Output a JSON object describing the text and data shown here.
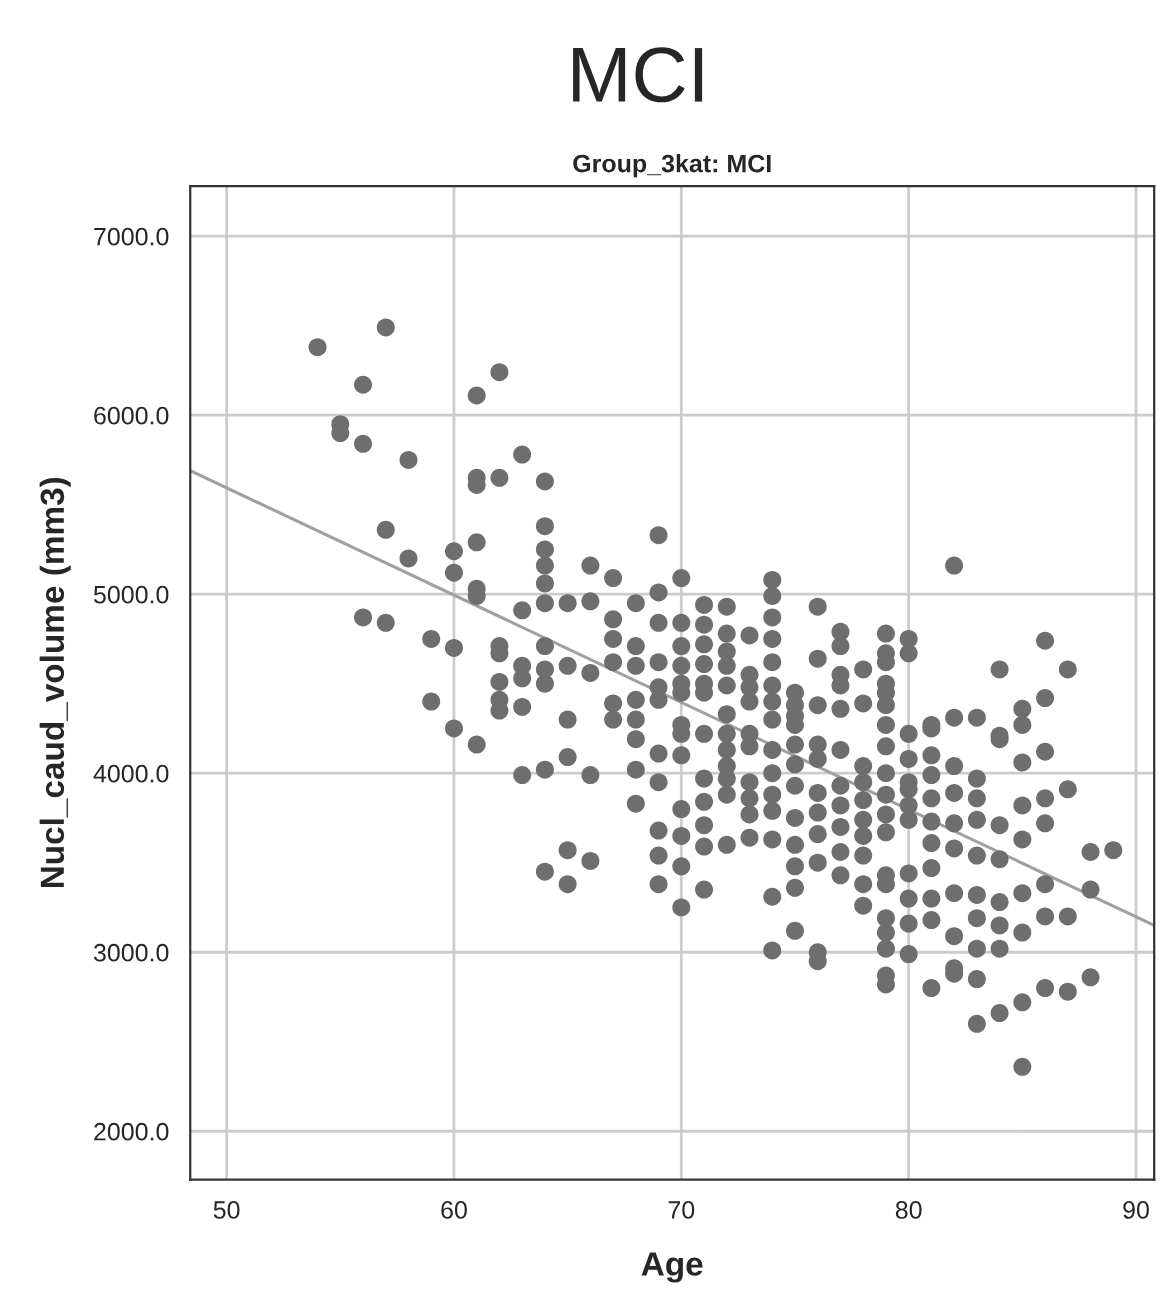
{
  "chart_data": {
    "type": "scatter",
    "title": "MCI",
    "subtitle": "Group_3kat: MCI",
    "xlabel": "Age",
    "ylabel": "Nucl_caud_volume (mm3)",
    "xlim": [
      48.4,
      90.8
    ],
    "ylim": [
      1730,
      7280
    ],
    "xticks": [
      50,
      60,
      70,
      80,
      90
    ],
    "yticks": [
      {
        "value": 2000,
        "label": "2000.0"
      },
      {
        "value": 3000,
        "label": "3000.0"
      },
      {
        "value": 4000,
        "label": "4000.0"
      },
      {
        "value": 5000,
        "label": "5000.0"
      },
      {
        "value": 6000,
        "label": "6000.0"
      },
      {
        "value": 7000,
        "label": "7000.0"
      }
    ],
    "grid": true,
    "series": [
      {
        "marker": "circle",
        "color": "#6e6e6e",
        "x": [
          54,
          55,
          55,
          56,
          56,
          56,
          57,
          57,
          57,
          58,
          58,
          59,
          59,
          60,
          60,
          60,
          60,
          61,
          61,
          61,
          61,
          61,
          61,
          61,
          62,
          62,
          62,
          62,
          62,
          62,
          62,
          63,
          63,
          63,
          63,
          63,
          63,
          64,
          64,
          64,
          64,
          64,
          64,
          64,
          64,
          64,
          64,
          64,
          65,
          65,
          65,
          65,
          65,
          65,
          66,
          66,
          66,
          66,
          66,
          67,
          67,
          67,
          67,
          67,
          67,
          68,
          68,
          68,
          68,
          68,
          68,
          68,
          68,
          69,
          69,
          69,
          69,
          69,
          69,
          69,
          69,
          69,
          69,
          69,
          70,
          70,
          70,
          70,
          70,
          70,
          70,
          70,
          70,
          70,
          70,
          70,
          70,
          71,
          71,
          71,
          71,
          71,
          71,
          71,
          71,
          71,
          71,
          71,
          71,
          72,
          72,
          72,
          72,
          72,
          72,
          72,
          72,
          72,
          72,
          72,
          72,
          73,
          73,
          73,
          73,
          73,
          73,
          73,
          73,
          73,
          73,
          74,
          74,
          74,
          74,
          74,
          74,
          74,
          74,
          74,
          74,
          74,
          74,
          74,
          74,
          74,
          75,
          75,
          75,
          75,
          75,
          75,
          75,
          75,
          75,
          75,
          75,
          75,
          76,
          76,
          76,
          76,
          76,
          76,
          76,
          76,
          76,
          76,
          76,
          77,
          77,
          77,
          77,
          77,
          77,
          77,
          77,
          77,
          77,
          77,
          78,
          78,
          78,
          78,
          78,
          78,
          78,
          78,
          78,
          78,
          79,
          79,
          79,
          79,
          79,
          79,
          79,
          79,
          79,
          79,
          79,
          79,
          79,
          79,
          79,
          79,
          79,
          79,
          79,
          80,
          80,
          80,
          80,
          80,
          80,
          80,
          80,
          80,
          80,
          80,
          80,
          81,
          81,
          81,
          81,
          81,
          81,
          81,
          81,
          81,
          81,
          81,
          82,
          82,
          82,
          82,
          82,
          82,
          82,
          82,
          82,
          82,
          83,
          83,
          83,
          83,
          83,
          83,
          83,
          83,
          83,
          83,
          84,
          84,
          84,
          84,
          84,
          84,
          84,
          84,
          84,
          85,
          85,
          85,
          85,
          85,
          85,
          85,
          85,
          85,
          86,
          86,
          86,
          86,
          86,
          86,
          86,
          86,
          87,
          87,
          87,
          87,
          88,
          88,
          88,
          89
        ],
        "values": [
          6380,
          5950,
          5900,
          6170,
          5840,
          4870,
          6490,
          5360,
          4840,
          5750,
          5200,
          4750,
          4400,
          5240,
          5120,
          4700,
          4250,
          6110,
          5650,
          5610,
          5290,
          5030,
          4990,
          4160,
          6240,
          5650,
          4710,
          4670,
          4510,
          4410,
          4350,
          5780,
          4910,
          4600,
          4530,
          4370,
          3990,
          5630,
          5380,
          5250,
          5160,
          5060,
          4950,
          4710,
          4580,
          4500,
          4020,
          3450,
          4950,
          4600,
          4300,
          4090,
          3570,
          3380,
          5160,
          4960,
          4560,
          3990,
          3510,
          5090,
          4860,
          4750,
          4620,
          4390,
          4300,
          4950,
          4710,
          4600,
          4410,
          4300,
          4190,
          4020,
          3830,
          5330,
          5010,
          4840,
          4620,
          4480,
          4410,
          4110,
          3950,
          3680,
          3540,
          3380,
          5090,
          4840,
          4710,
          4600,
          4500,
          4450,
          4270,
          4220,
          4100,
          3800,
          3650,
          3480,
          3250,
          4940,
          4830,
          4720,
          4610,
          4500,
          4450,
          4220,
          3970,
          3840,
          3710,
          3590,
          3350,
          4930,
          4780,
          4680,
          4600,
          4490,
          4330,
          4220,
          4130,
          4040,
          3970,
          3880,
          3600,
          4770,
          4550,
          4480,
          4400,
          4220,
          4150,
          3950,
          3860,
          3770,
          3640,
          5080,
          4990,
          4870,
          4750,
          4620,
          4490,
          4400,
          4300,
          4130,
          4000,
          3880,
          3790,
          3630,
          3310,
          3010,
          4450,
          4380,
          4320,
          4270,
          4160,
          4050,
          3930,
          3750,
          3600,
          3480,
          3360,
          3120,
          4930,
          4640,
          4380,
          4160,
          4080,
          3890,
          3780,
          3660,
          3500,
          3000,
          2950,
          4790,
          4710,
          4550,
          4490,
          4360,
          4130,
          3930,
          3820,
          3700,
          3560,
          3430,
          4580,
          4390,
          4040,
          3950,
          3850,
          3740,
          3650,
          3540,
          3380,
          3260,
          4780,
          4670,
          4620,
          4500,
          4450,
          4380,
          4270,
          4150,
          4000,
          3880,
          3770,
          3670,
          3430,
          3380,
          3190,
          3110,
          3020,
          2870,
          2820,
          4750,
          4670,
          4220,
          4080,
          3950,
          3910,
          3820,
          3740,
          3440,
          3300,
          3160,
          2990,
          4270,
          4250,
          4100,
          3990,
          3860,
          3730,
          3610,
          3470,
          3300,
          3180,
          2800,
          5160,
          4310,
          4040,
          3890,
          3720,
          3580,
          3330,
          3090,
          2910,
          2880,
          4310,
          3970,
          3860,
          3740,
          3540,
          3320,
          3190,
          3020,
          2850,
          2600,
          4580,
          4210,
          4190,
          3710,
          3520,
          3280,
          3150,
          3020,
          2660,
          4360,
          4270,
          4060,
          3820,
          3630,
          3330,
          3110,
          2720,
          2360,
          4740,
          4420,
          4120,
          3860,
          3720,
          3380,
          3200,
          2800,
          4580,
          3910,
          3200,
          2780,
          3560,
          3350,
          2860,
          3570
        ]
      },
      {
        "type": "line",
        "color": "#a0a0a0",
        "x": [
          48.4,
          90.8
        ],
        "values": [
          5690,
          3150
        ]
      }
    ]
  }
}
